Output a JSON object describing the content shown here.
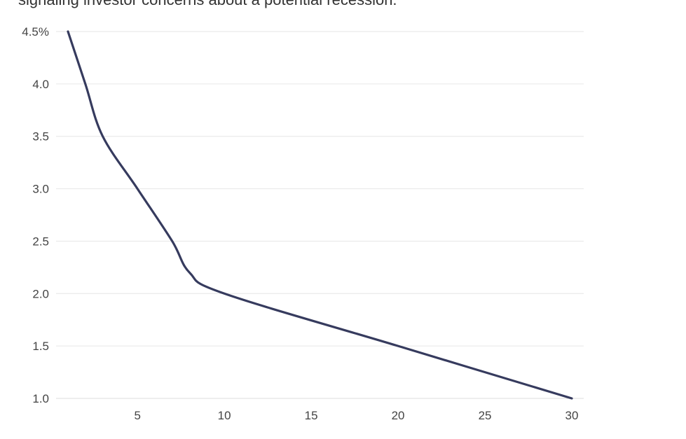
{
  "caption": "signaling investor concerns about a potential recession.",
  "chart_data": {
    "type": "line",
    "title": "",
    "xlabel": "",
    "ylabel": "",
    "xlim": [
      0,
      30
    ],
    "ylim": [
      1.0,
      4.5
    ],
    "grid": true,
    "x_ticks": [
      {
        "value": 5,
        "label": "5"
      },
      {
        "value": 10,
        "label": "10"
      },
      {
        "value": 15,
        "label": "15"
      },
      {
        "value": 20,
        "label": "20"
      },
      {
        "value": 25,
        "label": "25"
      },
      {
        "value": 30,
        "label": "30"
      }
    ],
    "y_ticks": [
      {
        "value": 4.5,
        "label": "4.5%"
      },
      {
        "value": 4.0,
        "label": "4.0"
      },
      {
        "value": 3.5,
        "label": "3.5"
      },
      {
        "value": 3.0,
        "label": "3.0"
      },
      {
        "value": 2.5,
        "label": "2.5"
      },
      {
        "value": 2.0,
        "label": "2.0"
      },
      {
        "value": 1.5,
        "label": "1.5"
      },
      {
        "value": 1.0,
        "label": "1.0"
      }
    ],
    "series": [
      {
        "color": "#363b5e",
        "x": [
          1,
          2,
          3,
          5,
          7,
          8,
          10,
          20,
          30
        ],
        "y": [
          4.5,
          4.0,
          3.5,
          3.0,
          2.5,
          2.2,
          2.0,
          1.5,
          1.0
        ]
      }
    ],
    "colors": {
      "line": "#363b5e",
      "grid": "#e6e6e6",
      "tick_text": "#444444"
    }
  }
}
